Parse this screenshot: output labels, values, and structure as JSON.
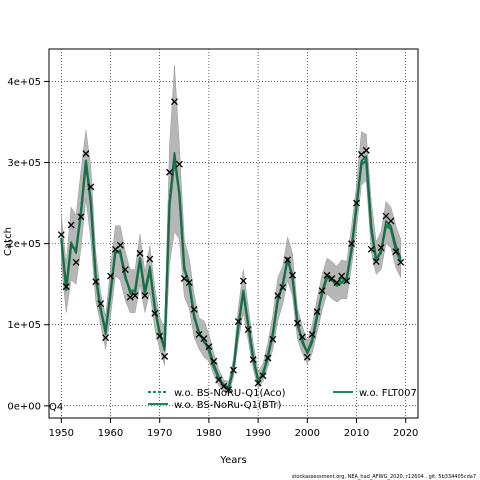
{
  "chart_data": {
    "type": "line",
    "title": "",
    "xlabel": "Years",
    "ylabel": "Catch",
    "xlim": [
      1947.5,
      2022.5
    ],
    "ylim": [
      -15000,
      440000
    ],
    "xticks": [
      1950,
      1960,
      1970,
      1980,
      1990,
      2000,
      2010,
      2020
    ],
    "yticks": [
      0,
      100000,
      200000,
      300000,
      400000
    ],
    "ytick_labels": [
      "0e+00",
      "1e+05",
      "2e+05",
      "3e+05",
      "4e+05"
    ],
    "grid": true,
    "legend_position": "bottom",
    "corner_label": "Q4",
    "footer": "stockassessment.org, NEA_had_AFWG_2020, r12604 , git: 5b334405cda7",
    "legend": [
      {
        "name": "w.o. BS-NoRU-Q1(Aco)",
        "style": "dashed",
        "color": "#1a8a5a"
      },
      {
        "name": "w.o. BS-NoRu-Q1(BTr)",
        "style": "solid",
        "color": "#1a8a5a"
      },
      {
        "name": "w.o. FLT007",
        "style": "solid",
        "color": "#1a8a5a"
      }
    ],
    "observed": {
      "x": [
        1950,
        1951,
        1952,
        1953,
        1954,
        1955,
        1956,
        1957,
        1958,
        1959,
        1960,
        1961,
        1962,
        1963,
        1964,
        1965,
        1966,
        1967,
        1968,
        1969,
        1970,
        1971,
        1972,
        1973,
        1974,
        1975,
        1976,
        1977,
        1978,
        1979,
        1980,
        1981,
        1982,
        1983,
        1984,
        1985,
        1986,
        1987,
        1988,
        1989,
        1990,
        1991,
        1992,
        1993,
        1994,
        1995,
        1996,
        1997,
        1998,
        1999,
        2000,
        2001,
        2002,
        2003,
        2004,
        2005,
        2006,
        2007,
        2008,
        2009,
        2010,
        2011,
        2012,
        2013,
        2014,
        2015,
        2016,
        2017,
        2018,
        2019
      ],
      "y": [
        211000,
        147000,
        223000,
        177000,
        233000,
        311000,
        270000,
        153000,
        126000,
        84000,
        160000,
        193000,
        198000,
        168000,
        134000,
        136000,
        188000,
        136000,
        181000,
        114000,
        86000,
        61000,
        288000,
        375000,
        298000,
        157000,
        152000,
        119000,
        88000,
        83000,
        73000,
        55000,
        32000,
        24000,
        20000,
        44000,
        104000,
        154000,
        94000,
        57000,
        28000,
        37000,
        59000,
        82000,
        136000,
        146000,
        180000,
        161000,
        102000,
        85000,
        60000,
        88000,
        116000,
        142000,
        161000,
        157000,
        152000,
        160000,
        154000,
        200000,
        250000,
        310000,
        315000,
        193000,
        178000,
        195000,
        234000,
        228000,
        190000,
        177000
      ]
    },
    "series": [
      {
        "name": "w.o. BS-NoRU-Q1(Aco)",
        "x": [
          1950,
          1951,
          1952,
          1953,
          1954,
          1955,
          1956,
          1957,
          1958,
          1959,
          1960,
          1961,
          1962,
          1963,
          1964,
          1965,
          1966,
          1967,
          1968,
          1969,
          1970,
          1971,
          1972,
          1973,
          1974,
          1975,
          1976,
          1977,
          1978,
          1979,
          1980,
          1981,
          1982,
          1983,
          1984,
          1985,
          1986,
          1987,
          1988,
          1989,
          1990,
          1991,
          1992,
          1993,
          1994,
          1995,
          1996,
          1997,
          1998,
          1999,
          2000,
          2001,
          2002,
          2003,
          2004,
          2005,
          2006,
          2007,
          2008,
          2009,
          2010,
          2011,
          2012,
          2013,
          2014,
          2015,
          2016,
          2017,
          2018,
          2019
        ],
        "y": [
          205000,
          145000,
          200000,
          190000,
          240000,
          300000,
          250000,
          160000,
          120000,
          90000,
          140000,
          190000,
          190000,
          160000,
          140000,
          140000,
          180000,
          140000,
          170000,
          120000,
          90000,
          70000,
          250000,
          310000,
          260000,
          170000,
          150000,
          110000,
          90000,
          80000,
          70000,
          50000,
          35000,
          25000,
          22000,
          45000,
          100000,
          140000,
          100000,
          60000,
          30000,
          40000,
          60000,
          90000,
          130000,
          150000,
          180000,
          160000,
          100000,
          80000,
          65000,
          80000,
          110000,
          140000,
          160000,
          155000,
          150000,
          155000,
          155000,
          195000,
          245000,
          300000,
          305000,
          220000,
          180000,
          190000,
          225000,
          220000,
          195000,
          180000
        ]
      },
      {
        "name": "w.o. BS-NoRu-Q1(BTr)",
        "x": [
          1950,
          1951,
          1952,
          1953,
          1954,
          1955,
          1956,
          1957,
          1958,
          1959,
          1960,
          1961,
          1962,
          1963,
          1964,
          1965,
          1966,
          1967,
          1968,
          1969,
          1970,
          1971,
          1972,
          1973,
          1974,
          1975,
          1976,
          1977,
          1978,
          1979,
          1980,
          1981,
          1982,
          1983,
          1984,
          1985,
          1986,
          1987,
          1988,
          1989,
          1990,
          1991,
          1992,
          1993,
          1994,
          1995,
          1996,
          1997,
          1998,
          1999,
          2000,
          2001,
          2002,
          2003,
          2004,
          2005,
          2006,
          2007,
          2008,
          2009,
          2010,
          2011,
          2012,
          2013,
          2014,
          2015,
          2016,
          2017,
          2018,
          2019
        ],
        "y": [
          207000,
          143000,
          198000,
          192000,
          238000,
          302000,
          252000,
          158000,
          118000,
          92000,
          138000,
          192000,
          188000,
          158000,
          142000,
          142000,
          182000,
          138000,
          168000,
          122000,
          88000,
          72000,
          248000,
          305000,
          262000,
          168000,
          152000,
          112000,
          88000,
          82000,
          68000,
          48000,
          34000,
          26000,
          22000,
          46000,
          98000,
          142000,
          98000,
          58000,
          32000,
          38000,
          62000,
          88000,
          132000,
          148000,
          182000,
          158000,
          102000,
          78000,
          66000,
          82000,
          112000,
          138000,
          158000,
          156000,
          148000,
          152000,
          158000,
          192000,
          248000,
          298000,
          302000,
          218000,
          178000,
          192000,
          222000,
          218000,
          192000,
          178000
        ]
      },
      {
        "name": "w.o. FLT007",
        "x": [
          1950,
          1951,
          1952,
          1953,
          1954,
          1955,
          1956,
          1957,
          1958,
          1959,
          1960,
          1961,
          1962,
          1963,
          1964,
          1965,
          1966,
          1967,
          1968,
          1969,
          1970,
          1971,
          1972,
          1973,
          1974,
          1975,
          1976,
          1977,
          1978,
          1979,
          1980,
          1981,
          1982,
          1983,
          1984,
          1985,
          1986,
          1987,
          1988,
          1989,
          1990,
          1991,
          1992,
          1993,
          1994,
          1995,
          1996,
          1997,
          1998,
          1999,
          2000,
          2001,
          2002,
          2003,
          2004,
          2005,
          2006,
          2007,
          2008,
          2009,
          2010,
          2011,
          2012,
          2013,
          2014,
          2015,
          2016,
          2017,
          2018,
          2019
        ],
        "y": [
          203000,
          147000,
          202000,
          188000,
          242000,
          298000,
          248000,
          162000,
          122000,
          88000,
          142000,
          188000,
          192000,
          162000,
          138000,
          138000,
          178000,
          142000,
          172000,
          118000,
          92000,
          68000,
          252000,
          312000,
          258000,
          172000,
          148000,
          108000,
          92000,
          78000,
          72000,
          52000,
          36000,
          24000,
          22000,
          44000,
          102000,
          138000,
          102000,
          62000,
          28000,
          42000,
          58000,
          92000,
          128000,
          152000,
          178000,
          162000,
          98000,
          82000,
          64000,
          78000,
          108000,
          142000,
          162000,
          154000,
          152000,
          158000,
          152000,
          198000,
          242000,
          302000,
          308000,
          222000,
          182000,
          188000,
          228000,
          222000,
          198000,
          182000
        ]
      }
    ],
    "confidence_band": {
      "x": [
        1950,
        1951,
        1952,
        1953,
        1954,
        1955,
        1956,
        1957,
        1958,
        1959,
        1960,
        1961,
        1962,
        1963,
        1964,
        1965,
        1966,
        1967,
        1968,
        1969,
        1970,
        1971,
        1972,
        1973,
        1974,
        1975,
        1976,
        1977,
        1978,
        1979,
        1980,
        1981,
        1982,
        1983,
        1984,
        1985,
        1986,
        1987,
        1988,
        1989,
        1990,
        1991,
        1992,
        1993,
        1994,
        1995,
        1996,
        1997,
        1998,
        1999,
        2000,
        2001,
        2002,
        2003,
        2004,
        2005,
        2006,
        2007,
        2008,
        2009,
        2010,
        2011,
        2012,
        2013,
        2014,
        2015,
        2016,
        2017,
        2018,
        2019
      ],
      "lower": [
        175000,
        115000,
        155000,
        150000,
        195000,
        255000,
        205000,
        130000,
        100000,
        70000,
        110000,
        160000,
        155000,
        130000,
        115000,
        115000,
        150000,
        115000,
        140000,
        95000,
        70000,
        50000,
        175000,
        215000,
        205000,
        135000,
        120000,
        85000,
        70000,
        60000,
        55000,
        38000,
        25000,
        18000,
        15000,
        35000,
        80000,
        115000,
        80000,
        45000,
        22000,
        30000,
        48000,
        70000,
        105000,
        125000,
        155000,
        135000,
        82000,
        64000,
        52000,
        65000,
        90000,
        118000,
        138000,
        132000,
        128000,
        132000,
        132000,
        172000,
        218000,
        272000,
        278000,
        190000,
        162000,
        168000,
        200000,
        195000,
        170000,
        158000
      ],
      "upper": [
        235000,
        175000,
        245000,
        235000,
        290000,
        340000,
        295000,
        190000,
        140000,
        110000,
        170000,
        222000,
        222000,
        190000,
        168000,
        168000,
        212000,
        165000,
        198000,
        145000,
        110000,
        95000,
        320000,
        420000,
        320000,
        205000,
        182000,
        138000,
        108000,
        105000,
        88000,
        65000,
        45000,
        32000,
        30000,
        58000,
        122000,
        168000,
        122000,
        78000,
        42000,
        52000,
        78000,
        112000,
        158000,
        172000,
        208000,
        188000,
        120000,
        98000,
        80000,
        100000,
        132000,
        162000,
        182000,
        178000,
        172000,
        180000,
        178000,
        222000,
        272000,
        338000,
        335000,
        252000,
        202000,
        215000,
        252000,
        245000,
        222000,
        205000
      ]
    }
  }
}
